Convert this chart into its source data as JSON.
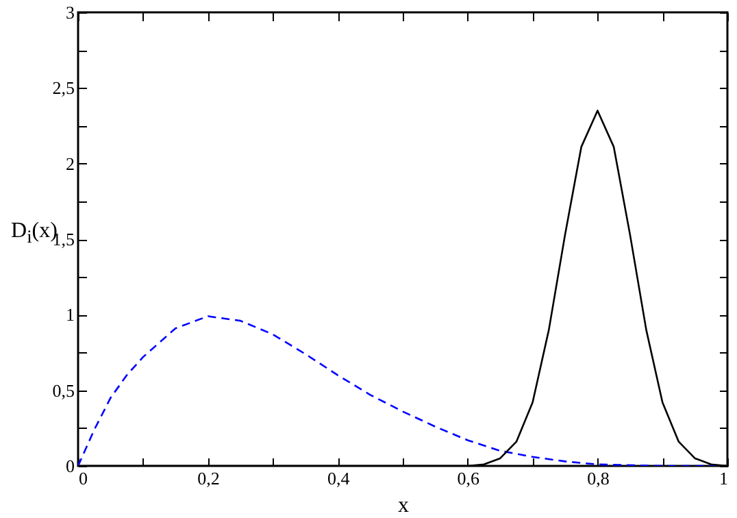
{
  "chart_data": {
    "type": "line",
    "xlabel": "x",
    "ylabel": "D$_{i}$(x)",
    "xlim": [
      0,
      1
    ],
    "ylim": [
      0,
      3
    ],
    "xticks": [
      0,
      {
        "value": 0.1,
        "label": null
      },
      {
        "value": 0.2,
        "label": "0,2"
      },
      {
        "value": 0.3,
        "label": null
      },
      {
        "value": 0.4,
        "label": "0,4"
      },
      {
        "value": 0.5,
        "label": null
      },
      {
        "value": 0.6,
        "label": "0,6"
      },
      {
        "value": 0.7,
        "label": null
      },
      {
        "value": 0.8,
        "label": "0,8"
      },
      {
        "value": 0.9,
        "label": null
      },
      1
    ],
    "yticks": [
      0,
      {
        "value": 0.25,
        "label": null
      },
      {
        "value": 0.5,
        "label": "0,5"
      },
      {
        "value": 0.75,
        "label": null
      },
      1,
      {
        "value": 1.25,
        "label": null
      },
      {
        "value": 1.5,
        "label": "1,5"
      },
      {
        "value": 1.75,
        "label": null
      },
      2,
      {
        "value": 2.25,
        "label": null
      },
      {
        "value": 2.5,
        "label": "2,5"
      },
      {
        "value": 2.75,
        "label": null
      },
      3
    ],
    "grid": false,
    "marker": "none",
    "series": [
      {
        "color": "#0000ff",
        "line_style": "dashed",
        "x": [
          0,
          0.025,
          0.05,
          0.075,
          0.1,
          0.15,
          0.2,
          0.25,
          0.3,
          0.35,
          0.4,
          0.45,
          0.5,
          0.55,
          0.6,
          0.65,
          0.7,
          0.75,
          0.8,
          0.9,
          1
        ],
        "values": [
          0,
          0.24,
          0.45,
          0.6,
          0.72,
          0.91,
          0.99,
          0.96,
          0.87,
          0.74,
          0.6,
          0.47,
          0.36,
          0.26,
          0.17,
          0.1,
          0.06,
          0.03,
          0.01,
          0,
          0
        ]
      },
      {
        "color": "#000000",
        "line_style": "solid",
        "x": [
          0,
          0.5,
          0.55,
          0.6,
          0.625,
          0.65,
          0.675,
          0.7,
          0.725,
          0.75,
          0.775,
          0.8,
          0.825,
          0.85,
          0.875,
          0.9,
          0.925,
          0.95,
          0.975,
          1
        ],
        "values": [
          0,
          0,
          0,
          0,
          0.01,
          0.05,
          0.16,
          0.42,
          0.9,
          1.53,
          2.11,
          2.35,
          2.11,
          1.53,
          0.9,
          0.42,
          0.16,
          0.05,
          0.01,
          0
        ]
      }
    ]
  }
}
